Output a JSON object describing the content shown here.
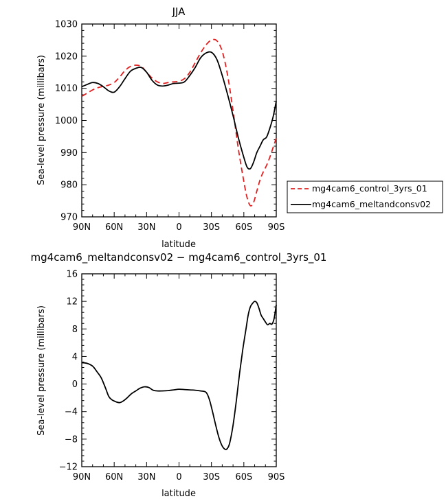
{
  "chart_data": [
    {
      "type": "line",
      "title": "JJA",
      "xlabel": "latitude",
      "ylabel": "Sea-level pressure (millibars)",
      "x_tick_labels": [
        "90N",
        "60N",
        "30N",
        "0",
        "30S",
        "60S",
        "90S"
      ],
      "x_tick_values": [
        -90,
        -60,
        -30,
        0,
        30,
        60,
        90
      ],
      "x_direction": "north-to-south",
      "xlim": [
        -90,
        90
      ],
      "ylim": [
        970,
        1030
      ],
      "y_ticks": [
        970,
        980,
        990,
        1000,
        1010,
        1020,
        1030
      ],
      "grid": false,
      "legend_position": "right",
      "series": [
        {
          "name": "mg4cam6_control_3yrs_01",
          "color": "#e02020",
          "dash": "dashed",
          "x": [
            -90,
            -85,
            -80,
            -75,
            -70,
            -65,
            -60,
            -55,
            -50,
            -45,
            -40,
            -35,
            -30,
            -25,
            -20,
            -15,
            -10,
            -5,
            0,
            5,
            10,
            15,
            20,
            25,
            30,
            35,
            40,
            45,
            50,
            55,
            60,
            63,
            66,
            69,
            72,
            75,
            78,
            81,
            84,
            87,
            90
          ],
          "y": [
            1007.5,
            1008.5,
            1009.5,
            1010.2,
            1010.6,
            1011.0,
            1011.8,
            1013.5,
            1015.5,
            1016.8,
            1017.2,
            1016.8,
            1015.0,
            1013.2,
            1012.0,
            1011.5,
            1011.8,
            1012.0,
            1012.2,
            1013.0,
            1015.0,
            1018.0,
            1021.0,
            1023.5,
            1025.0,
            1024.8,
            1021.5,
            1014.0,
            1003.0,
            991.0,
            981.0,
            976.0,
            973.5,
            974.5,
            978.0,
            981.5,
            984.0,
            986.0,
            988.5,
            991.5,
            994.5
          ]
        },
        {
          "name": "mg4cam6_meltandconsv02",
          "color": "#000000",
          "dash": "solid",
          "x": [
            -90,
            -85,
            -80,
            -75,
            -70,
            -65,
            -60,
            -55,
            -50,
            -45,
            -40,
            -35,
            -30,
            -25,
            -20,
            -15,
            -10,
            -5,
            0,
            5,
            10,
            15,
            20,
            25,
            30,
            35,
            40,
            45,
            50,
            55,
            60,
            63,
            66,
            69,
            72,
            75,
            78,
            81,
            84,
            87,
            90
          ],
          "y": [
            1010.5,
            1011.2,
            1011.8,
            1011.5,
            1010.5,
            1009.2,
            1008.8,
            1010.5,
            1013.0,
            1015.3,
            1016.2,
            1016.5,
            1015.0,
            1012.5,
            1011.0,
            1010.7,
            1011.0,
            1011.5,
            1011.6,
            1012.0,
            1014.0,
            1016.5,
            1019.5,
            1021.0,
            1021.2,
            1019.0,
            1014.0,
            1008.0,
            1001.5,
            994.5,
            988.5,
            985.5,
            985.0,
            987.0,
            990.0,
            992.0,
            994.0,
            994.8,
            997.5,
            1001.0,
            1006.0
          ]
        }
      ]
    },
    {
      "type": "line",
      "title": "mg4cam6_meltandconsv02 − mg4cam6_control_3yrs_01",
      "xlabel": "latitude",
      "ylabel": "Sea-level pressure (millibars)",
      "x_tick_labels": [
        "90N",
        "60N",
        "30N",
        "0",
        "30S",
        "60S",
        "90S"
      ],
      "x_tick_values": [
        -90,
        -60,
        -30,
        0,
        30,
        60,
        90
      ],
      "x_direction": "north-to-south",
      "xlim": [
        -90,
        90
      ],
      "ylim": [
        -12,
        16
      ],
      "y_ticks": [
        -12,
        -8,
        -4,
        0,
        4,
        8,
        12,
        16
      ],
      "grid": false,
      "series": [
        {
          "color": "#000000",
          "dash": "solid",
          "x": [
            -90,
            -85,
            -80,
            -76,
            -72,
            -68,
            -65,
            -62,
            -58,
            -55,
            -52,
            -48,
            -44,
            -40,
            -36,
            -32,
            -28,
            -24,
            -20,
            -16,
            -10,
            -5,
            0,
            5,
            10,
            15,
            20,
            25,
            28,
            31,
            34,
            37,
            40,
            43,
            45,
            47,
            50,
            53,
            56,
            59,
            62,
            64,
            66,
            68,
            70,
            72,
            74,
            76,
            78,
            80,
            82,
            84,
            86,
            88,
            90
          ],
          "y": [
            3.1,
            3.0,
            2.6,
            1.8,
            0.9,
            -0.6,
            -1.8,
            -2.3,
            -2.6,
            -2.7,
            -2.5,
            -2.0,
            -1.4,
            -1.0,
            -0.6,
            -0.4,
            -0.5,
            -0.9,
            -1.0,
            -1.0,
            -0.95,
            -0.85,
            -0.75,
            -0.8,
            -0.85,
            -0.9,
            -1.0,
            -1.2,
            -2.2,
            -4.0,
            -6.0,
            -7.8,
            -9.0,
            -9.5,
            -9.3,
            -8.5,
            -6.0,
            -2.5,
            1.5,
            5.0,
            8.0,
            10.0,
            11.2,
            11.7,
            12.0,
            11.8,
            11.0,
            10.0,
            9.5,
            9.0,
            8.6,
            8.8,
            8.7,
            9.5,
            11.5
          ]
        }
      ]
    }
  ]
}
